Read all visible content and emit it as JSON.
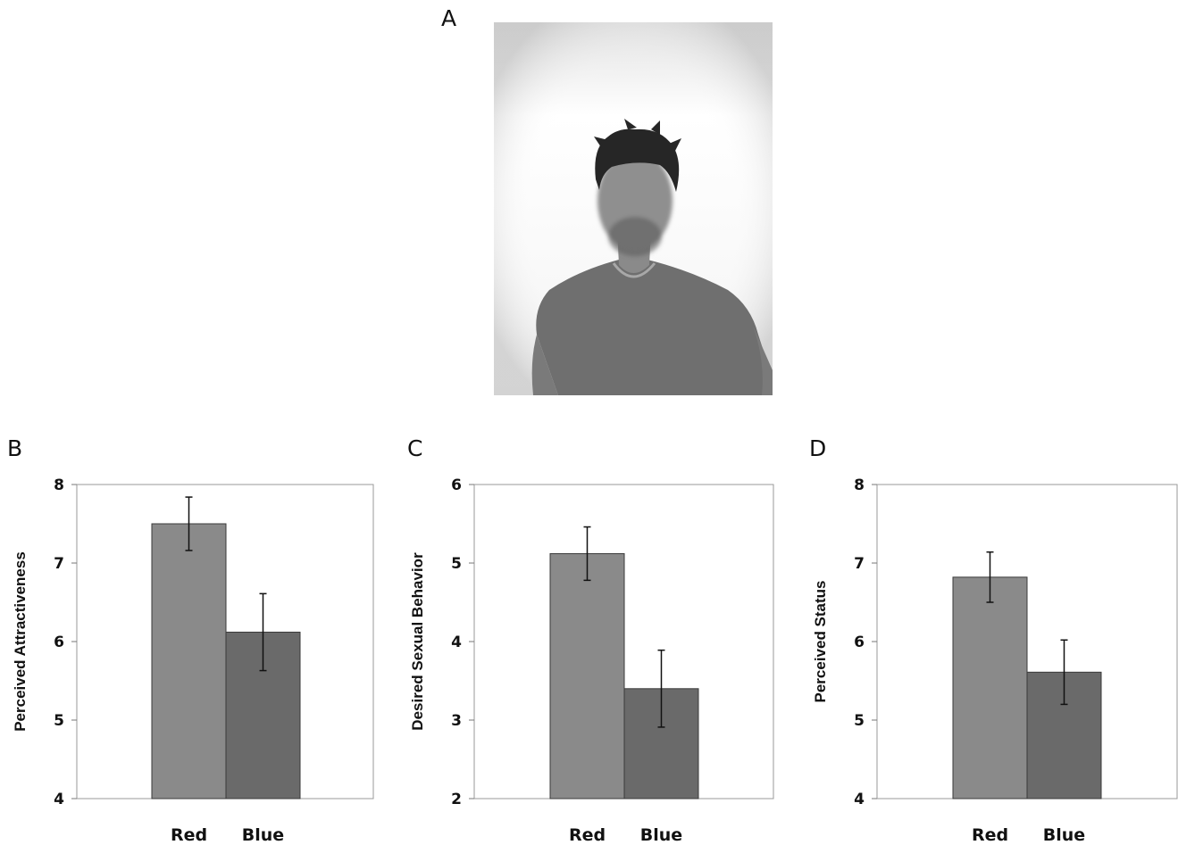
{
  "panels": {
    "a": "A",
    "b": "B",
    "c": "C",
    "d": "D"
  },
  "photo": {
    "description_icon": "person-photo-icon",
    "shirt_color": "#707070"
  },
  "colors": {
    "red_bar": "#8a8a8a",
    "blue_bar": "#6a6a6a"
  },
  "chart_data": [
    {
      "type": "bar",
      "categories": [
        "Red",
        "Blue"
      ],
      "values": [
        7.5,
        6.12
      ],
      "errors": [
        0.34,
        0.49
      ],
      "ylabel": "Perceived Attractiveness",
      "ylim": [
        4,
        8
      ],
      "yticks": [
        "4",
        "5",
        "6",
        "7",
        "8"
      ],
      "grid": false
    },
    {
      "type": "bar",
      "categories": [
        "Red",
        "Blue"
      ],
      "values": [
        5.12,
        3.4
      ],
      "errors": [
        0.34,
        0.49
      ],
      "ylabel": "Desired Sexual Behavior",
      "ylim": [
        2,
        6
      ],
      "yticks": [
        "2",
        "3",
        "4",
        "5",
        "6"
      ],
      "grid": false
    },
    {
      "type": "bar",
      "categories": [
        "Red",
        "Blue"
      ],
      "values": [
        6.82,
        5.61
      ],
      "errors": [
        0.32,
        0.41
      ],
      "ylabel": "Perceived Status",
      "ylim": [
        4,
        8
      ],
      "yticks": [
        "4",
        "5",
        "6",
        "7",
        "8"
      ],
      "grid": false
    }
  ]
}
